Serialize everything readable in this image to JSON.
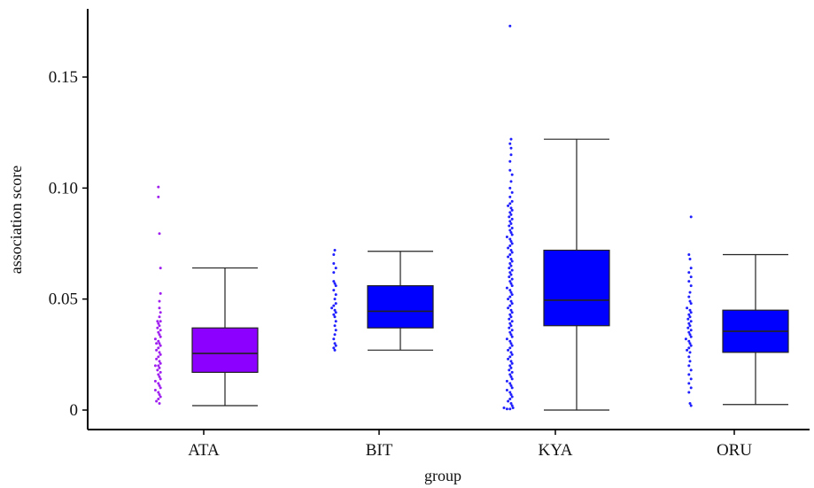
{
  "chart_data": {
    "type": "box",
    "xlabel": "group",
    "ylabel": "association score",
    "ylim": [
      -0.006,
      0.18
    ],
    "yticks": [
      0,
      0.05,
      0.1,
      0.15
    ],
    "ytick_labels": [
      "0",
      "0.05",
      "0.10",
      "0.15"
    ],
    "categories": [
      "ATA",
      "BIT",
      "KYA",
      "ORU"
    ],
    "grid": false,
    "legend": "none",
    "boxes": [
      {
        "group": "ATA",
        "color": "#8b00ff",
        "whisker_low": 0.002,
        "q1": 0.017,
        "median": 0.0255,
        "q3": 0.037,
        "whisker_high": 0.064
      },
      {
        "group": "BIT",
        "color": "#0000ff",
        "whisker_low": 0.027,
        "q1": 0.037,
        "median": 0.0445,
        "q3": 0.056,
        "whisker_high": 0.0715
      },
      {
        "group": "KYA",
        "color": "#0000ff",
        "whisker_low": 0.0,
        "q1": 0.038,
        "median": 0.0495,
        "q3": 0.072,
        "whisker_high": 0.122
      },
      {
        "group": "ORU",
        "color": "#0000ff",
        "whisker_low": 0.0025,
        "q1": 0.026,
        "median": 0.0355,
        "q3": 0.045,
        "whisker_high": 0.07
      }
    ],
    "points": {
      "ATA": {
        "color": "#a020f0",
        "values": [
          0.1005,
          0.096,
          0.0795,
          0.064,
          0.0525,
          0.049,
          0.046,
          0.044,
          0.042,
          0.04,
          0.04,
          0.039,
          0.038,
          0.037,
          0.036,
          0.035,
          0.034,
          0.033,
          0.032,
          0.031,
          0.03,
          0.03,
          0.029,
          0.028,
          0.027,
          0.026,
          0.025,
          0.024,
          0.023,
          0.022,
          0.021,
          0.02,
          0.02,
          0.019,
          0.018,
          0.017,
          0.016,
          0.015,
          0.014,
          0.013,
          0.012,
          0.011,
          0.01,
          0.009,
          0.008,
          0.007,
          0.006,
          0.005,
          0.004,
          0.003
        ]
      },
      "BIT": {
        "color": "#2020ff",
        "values": [
          0.072,
          0.07,
          0.066,
          0.064,
          0.062,
          0.058,
          0.057,
          0.056,
          0.054,
          0.052,
          0.05,
          0.048,
          0.047,
          0.046,
          0.045,
          0.044,
          0.043,
          0.042,
          0.04,
          0.038,
          0.036,
          0.034,
          0.032,
          0.03,
          0.029,
          0.028,
          0.027
        ]
      },
      "KYA": {
        "color": "#2020ff",
        "values": [
          0.173,
          0.122,
          0.12,
          0.118,
          0.115,
          0.112,
          0.108,
          0.106,
          0.103,
          0.1,
          0.098,
          0.096,
          0.094,
          0.093,
          0.092,
          0.091,
          0.09,
          0.089,
          0.088,
          0.087,
          0.086,
          0.085,
          0.084,
          0.083,
          0.082,
          0.081,
          0.08,
          0.079,
          0.078,
          0.077,
          0.076,
          0.075,
          0.074,
          0.073,
          0.072,
          0.071,
          0.07,
          0.069,
          0.068,
          0.067,
          0.066,
          0.065,
          0.064,
          0.063,
          0.062,
          0.061,
          0.06,
          0.059,
          0.058,
          0.057,
          0.056,
          0.055,
          0.054,
          0.053,
          0.052,
          0.051,
          0.05,
          0.049,
          0.048,
          0.047,
          0.046,
          0.045,
          0.044,
          0.043,
          0.042,
          0.041,
          0.04,
          0.039,
          0.038,
          0.037,
          0.036,
          0.035,
          0.034,
          0.033,
          0.032,
          0.031,
          0.03,
          0.029,
          0.028,
          0.027,
          0.026,
          0.025,
          0.024,
          0.023,
          0.022,
          0.021,
          0.02,
          0.019,
          0.018,
          0.017,
          0.016,
          0.015,
          0.014,
          0.013,
          0.012,
          0.011,
          0.01,
          0.009,
          0.008,
          0.007,
          0.006,
          0.005,
          0.004,
          0.003,
          0.002,
          0.001,
          0.001,
          0.0005,
          0.0005
        ]
      },
      "ORU": {
        "color": "#2020ff",
        "values": [
          0.087,
          0.07,
          0.068,
          0.064,
          0.062,
          0.06,
          0.058,
          0.056,
          0.053,
          0.051,
          0.049,
          0.048,
          0.046,
          0.045,
          0.044,
          0.043,
          0.042,
          0.041,
          0.04,
          0.039,
          0.038,
          0.037,
          0.036,
          0.035,
          0.034,
          0.033,
          0.032,
          0.031,
          0.03,
          0.029,
          0.028,
          0.027,
          0.026,
          0.024,
          0.022,
          0.02,
          0.018,
          0.016,
          0.014,
          0.012,
          0.01,
          0.008,
          0.003,
          0.002
        ]
      }
    }
  }
}
